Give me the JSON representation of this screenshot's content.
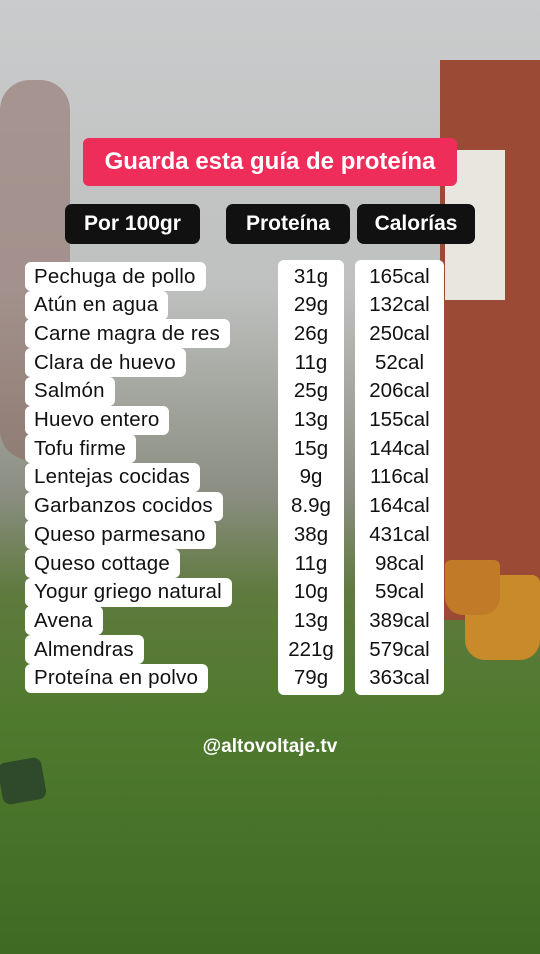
{
  "title": "Guarda esta guía de proteína",
  "table": {
    "headers": [
      "Por 100gr",
      "Proteína",
      "Calorías"
    ],
    "rows": [
      [
        "Pechuga de pollo",
        "31g",
        "165cal"
      ],
      [
        "Atún en agua",
        "29g",
        "132cal"
      ],
      [
        "Carne magra de res",
        "26g",
        "250cal"
      ],
      [
        "Clara de huevo",
        "11g",
        "52cal"
      ],
      [
        "Salmón",
        "25g",
        "206cal"
      ],
      [
        "Huevo entero",
        "13g",
        "155cal"
      ],
      [
        "Tofu firme",
        "15g",
        "144cal"
      ],
      [
        "Lentejas cocidas",
        "9g",
        "116cal"
      ],
      [
        "Garbanzos cocidos",
        "8.9g",
        "164cal"
      ],
      [
        "Queso parmesano",
        "38g",
        "431cal"
      ],
      [
        "Queso cottage",
        "11g",
        "98cal"
      ],
      [
        "Yogur griego natural",
        "10g",
        "59cal"
      ],
      [
        "Avena",
        "13g",
        "389cal"
      ],
      [
        "Almendras",
        "221g",
        "579cal"
      ],
      [
        "Proteína en polvo",
        "79g",
        "363cal"
      ]
    ]
  },
  "handle": "@altovoltaje.tv"
}
